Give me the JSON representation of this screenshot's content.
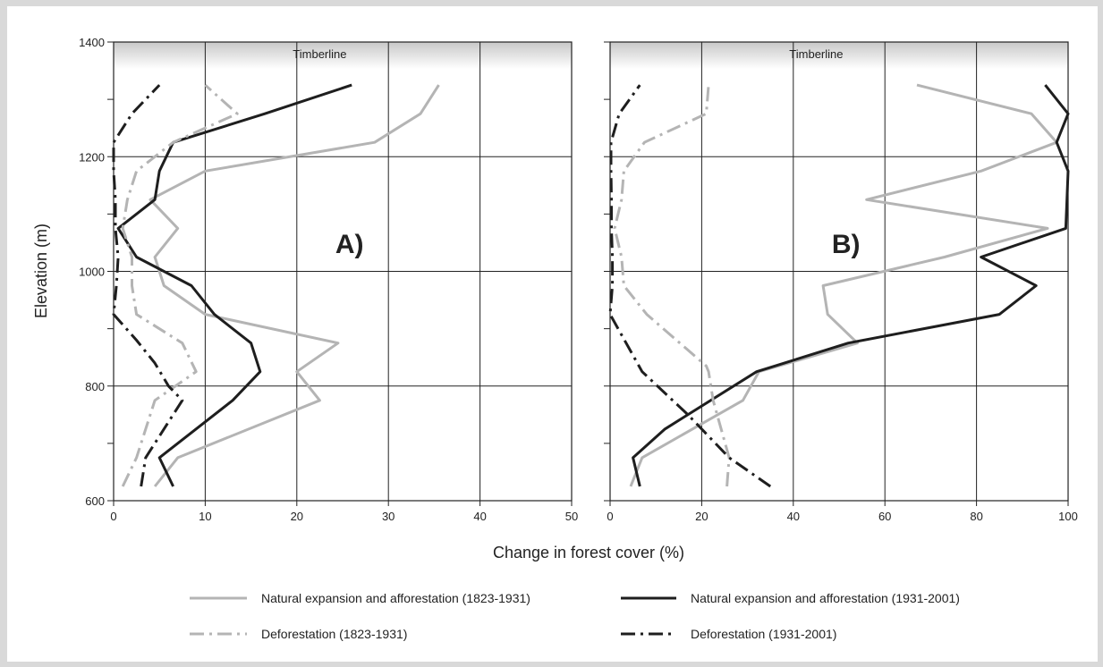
{
  "colors": {
    "light_series": "#b4b4b4",
    "dark_series": "#1e1e1e",
    "grid": "#222222"
  },
  "chart": {
    "ylabel": "Elevation (m)",
    "xlabel": "Change in forest cover (%)",
    "timberline_label": "Timberline"
  },
  "legend": [
    {
      "label": "Natural expansion and afforestation (1823-1931)",
      "color": "#b4b4b4",
      "dash": "solid"
    },
    {
      "label": "Natural expansion and afforestation (1931-2001)",
      "color": "#1e1e1e",
      "dash": "solid"
    },
    {
      "label": "Deforestation (1823-1931)",
      "color": "#b4b4b4",
      "dash": "dashdot"
    },
    {
      "label": "Deforestation (1931-2001)",
      "color": "#1e1e1e",
      "dash": "dashdot"
    }
  ],
  "chart_data": [
    {
      "type": "line",
      "panel_label": "A)",
      "xlabel": "Change in forest cover (%)",
      "ylabel": "Elevation (m)",
      "xlim": [
        0,
        50
      ],
      "ylim": [
        600,
        1400
      ],
      "xticks": [
        0,
        10,
        20,
        30,
        40,
        50
      ],
      "yticks": [
        600,
        800,
        1000,
        1200,
        1400
      ],
      "grid": true,
      "legend_position": "bottom",
      "annotation": "Timberline",
      "series": [
        {
          "name": "Natural expansion and afforestation (1823-1931)",
          "color": "#b4b4b4",
          "dash": "solid",
          "points": [
            [
              4.5,
              625
            ],
            [
              7,
              675
            ],
            [
              22.5,
              775
            ],
            [
              20,
              825
            ],
            [
              24.5,
              875
            ],
            [
              10,
              925
            ],
            [
              5.5,
              975
            ],
            [
              4.5,
              1025
            ],
            [
              7,
              1075
            ],
            [
              4,
              1125
            ],
            [
              10,
              1175
            ],
            [
              28.5,
              1225
            ],
            [
              33.5,
              1275
            ],
            [
              35.5,
              1325
            ]
          ]
        },
        {
          "name": "Natural expansion and afforestation (1931-2001)",
          "color": "#1e1e1e",
          "dash": "solid",
          "points": [
            [
              6.5,
              625
            ],
            [
              5,
              675
            ],
            [
              13,
              775
            ],
            [
              16,
              825
            ],
            [
              15,
              875
            ],
            [
              11,
              925
            ],
            [
              8.5,
              975
            ],
            [
              2.5,
              1025
            ],
            [
              0.5,
              1075
            ],
            [
              4.5,
              1125
            ],
            [
              5,
              1175
            ],
            [
              6.5,
              1225
            ],
            [
              16.5,
              1275
            ],
            [
              26,
              1325
            ]
          ]
        },
        {
          "name": "Deforestation (1823-1931)",
          "color": "#b4b4b4",
          "dash": "dashdot",
          "points": [
            [
              1,
              625
            ],
            [
              2.5,
              675
            ],
            [
              4.5,
              775
            ],
            [
              9,
              825
            ],
            [
              7.5,
              875
            ],
            [
              2.5,
              925
            ],
            [
              2,
              975
            ],
            [
              2,
              1025
            ],
            [
              1,
              1075
            ],
            [
              1.5,
              1125
            ],
            [
              2.5,
              1175
            ],
            [
              6.5,
              1225
            ],
            [
              13.5,
              1275
            ],
            [
              10,
              1325
            ]
          ]
        },
        {
          "name": "Deforestation (1931-2001)",
          "color": "#1e1e1e",
          "dash": "dashdot",
          "points": [
            [
              3,
              625
            ],
            [
              3.5,
              675
            ],
            [
              7.5,
              775
            ],
            [
              6,
              800
            ],
            [
              4.5,
              840
            ],
            [
              2.5,
              880
            ],
            [
              0,
              925
            ],
            [
              0.3,
              975
            ],
            [
              0.5,
              1025
            ],
            [
              0.2,
              1075
            ],
            [
              0.2,
              1125
            ],
            [
              0,
              1175
            ],
            [
              0,
              1225
            ],
            [
              2,
              1275
            ],
            [
              5,
              1325
            ]
          ]
        }
      ]
    },
    {
      "type": "line",
      "panel_label": "B)",
      "xlabel": "Change in forest cover (%)",
      "ylabel": "Elevation (m)",
      "xlim": [
        0,
        100
      ],
      "ylim": [
        600,
        1400
      ],
      "xticks": [
        0,
        20,
        40,
        60,
        80,
        100
      ],
      "yticks": [
        600,
        800,
        1000,
        1200,
        1400
      ],
      "grid": true,
      "legend_position": "bottom",
      "annotation": "Timberline",
      "series": [
        {
          "name": "Natural expansion and afforestation (1823-1931)",
          "color": "#b4b4b4",
          "dash": "solid",
          "points": [
            [
              4.5,
              625
            ],
            [
              7,
              675
            ],
            [
              29,
              775
            ],
            [
              32.5,
              825
            ],
            [
              54,
              875
            ],
            [
              47.5,
              925
            ],
            [
              46.5,
              975
            ],
            [
              73,
              1025
            ],
            [
              95.5,
              1075
            ],
            [
              56,
              1125
            ],
            [
              81,
              1175
            ],
            [
              97.5,
              1225
            ],
            [
              92,
              1275
            ],
            [
              67,
              1325
            ]
          ]
        },
        {
          "name": "Natural expansion and afforestation (1931-2001)",
          "color": "#1e1e1e",
          "dash": "solid",
          "points": [
            [
              6.5,
              625
            ],
            [
              5,
              675
            ],
            [
              12,
              725
            ],
            [
              32,
              825
            ],
            [
              52,
              875
            ],
            [
              85,
              925
            ],
            [
              93,
              975
            ],
            [
              81,
              1025
            ],
            [
              99.5,
              1075
            ],
            [
              100,
              1175
            ],
            [
              97.5,
              1225
            ],
            [
              100,
              1275
            ],
            [
              95,
              1325
            ]
          ]
        },
        {
          "name": "Deforestation (1823-1931)",
          "color": "#b4b4b4",
          "dash": "dashdot",
          "points": [
            [
              25.5,
              625
            ],
            [
              26,
              675
            ],
            [
              22.5,
              775
            ],
            [
              21.5,
              825
            ],
            [
              21,
              835
            ],
            [
              8,
              925
            ],
            [
              3,
              975
            ],
            [
              2.5,
              1025
            ],
            [
              1,
              1075
            ],
            [
              2.5,
              1125
            ],
            [
              3,
              1175
            ],
            [
              7.5,
              1225
            ],
            [
              21,
              1275
            ],
            [
              21.5,
              1325
            ]
          ]
        },
        {
          "name": "Deforestation (1931-2001)",
          "color": "#1e1e1e",
          "dash": "dashdot",
          "points": [
            [
              35,
              625
            ],
            [
              26,
              675
            ],
            [
              17,
              750
            ],
            [
              7,
              825
            ],
            [
              0,
              925
            ],
            [
              0.5,
              975
            ],
            [
              0.5,
              1025
            ],
            [
              0.3,
              1075
            ],
            [
              0.3,
              1125
            ],
            [
              0.2,
              1175
            ],
            [
              0.2,
              1225
            ],
            [
              2,
              1275
            ],
            [
              6.5,
              1325
            ]
          ]
        }
      ]
    }
  ]
}
